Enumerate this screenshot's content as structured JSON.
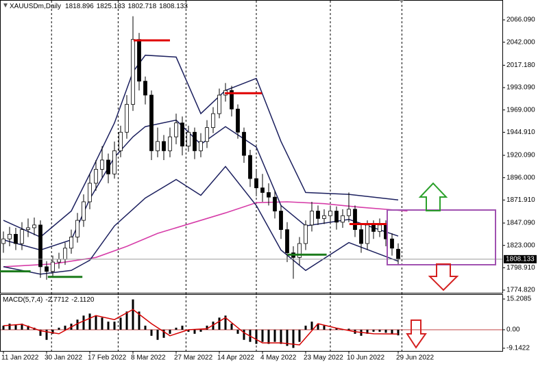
{
  "chart_data": {
    "type": "candlestick",
    "title": "XAUUSDm,Daily",
    "header_values": [
      1818.896,
      1825.133,
      1802.718,
      1808.133
    ],
    "candles": {
      "bull_color": "#ffffff",
      "bear_color": "#000000",
      "open": [
        1825,
        1830,
        1835,
        1825,
        1840,
        1842,
        1845,
        1800,
        1795,
        1805,
        1808,
        1820,
        1832,
        1850,
        1870,
        1890,
        1905,
        1915,
        1900,
        1925,
        1945,
        1975,
        2045,
        2000,
        1985,
        1925,
        1935,
        1925,
        1940,
        1955,
        1930,
        1945,
        1925,
        1935,
        1950,
        1965,
        1985,
        1990,
        1970,
        1945,
        1920,
        1895,
        1885,
        1880,
        1875,
        1860,
        1840,
        1815,
        1810,
        1825,
        1845,
        1860,
        1852,
        1855,
        1860,
        1848,
        1855,
        1862,
        1840,
        1825,
        1845,
        1838,
        1845,
        1830,
        1818.896
      ],
      "high": [
        1838,
        1843,
        1842,
        1848,
        1852,
        1853,
        1850,
        1806,
        1812,
        1815,
        1826,
        1840,
        1858,
        1878,
        1900,
        1915,
        1930,
        1922,
        1935,
        1952,
        1985,
        2070,
        2052,
        2005,
        1990,
        1950,
        1942,
        1950,
        1965,
        1962,
        1952,
        1950,
        1944,
        1958,
        1972,
        1992,
        1998,
        1995,
        1975,
        1950,
        1926,
        1905,
        1900,
        1890,
        1882,
        1866,
        1848,
        1822,
        1832,
        1850,
        1870,
        1866,
        1862,
        1866,
        1865,
        1862,
        1880,
        1866,
        1846,
        1850,
        1850,
        1852,
        1850,
        1836,
        1825.133
      ],
      "low": [
        1815,
        1822,
        1818,
        1818,
        1832,
        1834,
        1788,
        1786,
        1789,
        1798,
        1802,
        1814,
        1826,
        1843,
        1862,
        1882,
        1896,
        1890,
        1895,
        1918,
        1938,
        1968,
        1990,
        1975,
        1915,
        1918,
        1915,
        1918,
        1932,
        1920,
        1924,
        1916,
        1918,
        1928,
        1944,
        1960,
        1978,
        1962,
        1938,
        1912,
        1886,
        1876,
        1870,
        1866,
        1852,
        1830,
        1805,
        1787,
        1802,
        1818,
        1838,
        1845,
        1846,
        1848,
        1840,
        1842,
        1848,
        1832,
        1815,
        1818,
        1830,
        1832,
        1822,
        1812,
        1802.718
      ],
      "close": [
        1830,
        1835,
        1825,
        1840,
        1842,
        1845,
        1800,
        1795,
        1805,
        1808,
        1820,
        1832,
        1850,
        1870,
        1890,
        1905,
        1915,
        1900,
        1925,
        1945,
        1975,
        2045,
        2000,
        1985,
        1925,
        1935,
        1925,
        1940,
        1955,
        1930,
        1945,
        1925,
        1935,
        1950,
        1965,
        1985,
        1990,
        1970,
        1945,
        1920,
        1895,
        1885,
        1880,
        1875,
        1860,
        1840,
        1815,
        1810,
        1825,
        1845,
        1860,
        1852,
        1855,
        1860,
        1848,
        1855,
        1862,
        1840,
        1825,
        1845,
        1838,
        1845,
        1830,
        1820,
        1808.133
      ]
    },
    "bands": {
      "color": "#1b1f5e",
      "x": [
        0,
        6,
        11,
        14,
        18,
        21,
        23,
        28,
        32,
        36,
        41,
        45,
        49,
        56,
        64
      ],
      "upper": [
        1850,
        1832,
        1860,
        1900,
        1955,
        2010,
        2028,
        2026,
        1965,
        1990,
        2003,
        1935,
        1880,
        1878,
        1872
      ],
      "middle": [
        1829,
        1818,
        1829,
        1873,
        1918,
        1940,
        1951,
        1958,
        1932,
        1951,
        1929,
        1866,
        1844,
        1851,
        1833
      ],
      "lower": [
        1800,
        1792,
        1796,
        1807,
        1844,
        1862,
        1874,
        1894,
        1877,
        1908,
        1866,
        1818,
        1796,
        1826,
        1806
      ]
    },
    "ma": {
      "color": "#d63ca8",
      "x": [
        0,
        8,
        15,
        20,
        25,
        31,
        36,
        41,
        46,
        52,
        58,
        65.5
      ],
      "values": [
        1800,
        1803,
        1810,
        1822,
        1836,
        1848,
        1858,
        1869,
        1870,
        1868,
        1864,
        1860
      ]
    },
    "levels": [
      {
        "value": 2044,
        "color": "#e00000",
        "x": [
          21.1,
          27
        ]
      },
      {
        "value": 1987,
        "color": "#e00000",
        "x": [
          35.9,
          41.9
        ]
      },
      {
        "value": 1846,
        "color": "#e00000",
        "x": [
          56.1,
          62.2
        ]
      },
      {
        "value": 1795,
        "color": "#1a7a1a",
        "x": [
          -0.6,
          4.4
        ]
      },
      {
        "value": 1789,
        "color": "#1a7a1a",
        "x": [
          7.2,
          12.8
        ]
      },
      {
        "value": 1813,
        "color": "#1a7a1a",
        "x": [
          46.1,
          52.4
        ]
      }
    ],
    "ylim": [
      1771.9,
      2085.3
    ],
    "yticks": [
      {
        "value": 2066.09,
        "label": "2066.090"
      },
      {
        "value": 2042,
        "label": "2042.000"
      },
      {
        "value": 2017.18,
        "label": "2017.180"
      },
      {
        "value": 1993.09,
        "label": "1993.090"
      },
      {
        "value": 1969,
        "label": "1969.000"
      },
      {
        "value": 1944.91,
        "label": "1944.910"
      },
      {
        "value": 1920.09,
        "label": "1920.090"
      },
      {
        "value": 1896,
        "label": "1896.000"
      },
      {
        "value": 1871.91,
        "label": "1871.910"
      },
      {
        "value": 1847.09,
        "label": "1847.090"
      },
      {
        "value": 1823,
        "label": "1823.000"
      },
      {
        "value": 1798.91,
        "label": "1798.910"
      },
      {
        "value": 1774.82,
        "label": "1774.820"
      }
    ],
    "xticks": [
      {
        "value": 0,
        "label": "11 Jan 2022"
      },
      {
        "value": 7,
        "label": "30 Jan 2022"
      },
      {
        "value": 14,
        "label": "17 Feb 2022"
      },
      {
        "value": 21,
        "label": "8 Mar 2022"
      },
      {
        "value": 28,
        "label": "27 Mar 2022"
      },
      {
        "value": 35,
        "label": "14 Apr 2022"
      },
      {
        "value": 42,
        "label": "4 May 2022"
      },
      {
        "value": 49,
        "label": "23 May 2022"
      },
      {
        "value": 56,
        "label": "10 Jun 2022"
      },
      {
        "value": 64,
        "label": "29 Jun 2022"
      }
    ],
    "xgrid": [
      7.8,
      18.6,
      29.6,
      41,
      53,
      64.6
    ],
    "macd": {
      "title": "MACD(5,7,4)",
      "readout": [
        -2.7712,
        {
          "value": -2.112,
          "label": "-2.1120"
        }
      ],
      "histogram_color": "#000000",
      "histogram": [
        2,
        3,
        2.5,
        3,
        2,
        1,
        -3,
        -5,
        -2,
        1,
        2,
        3,
        5,
        7,
        8,
        7,
        6,
        4,
        4,
        6,
        9,
        15,
        9,
        2,
        -3,
        -5,
        -4,
        -2,
        1,
        2,
        -1,
        -2,
        -1,
        2,
        4,
        6,
        7,
        3,
        -2,
        -5,
        -6,
        -7,
        -6,
        -7,
        -6,
        -7,
        -8,
        -9,
        -6,
        2,
        4,
        3,
        2,
        0.5,
        1,
        0,
        0.5,
        -2,
        -3,
        -2,
        -1,
        -1,
        -1.5,
        -2,
        -2.7712
      ],
      "signal": {
        "color": "#d40000",
        "x": [
          0,
          3,
          6,
          9,
          12,
          15,
          18,
          21,
          24,
          27,
          30,
          33,
          36,
          39,
          42,
          45,
          48,
          51,
          54,
          57,
          60,
          64
        ],
        "values": [
          2,
          2.7,
          -0.5,
          -2,
          3,
          7,
          5,
          10,
          3,
          -3,
          0,
          0.5,
          6,
          -1.5,
          -6.5,
          -6.5,
          -7.5,
          3,
          0.8,
          -1,
          -2,
          -2.112
        ]
      },
      "ylim": [
        -10.5,
        17.6
      ],
      "yticks": [
        15.2085,
        {
          "value": 0,
          "label": "0.00"
        },
        -9.1422
      ]
    }
  }
}
